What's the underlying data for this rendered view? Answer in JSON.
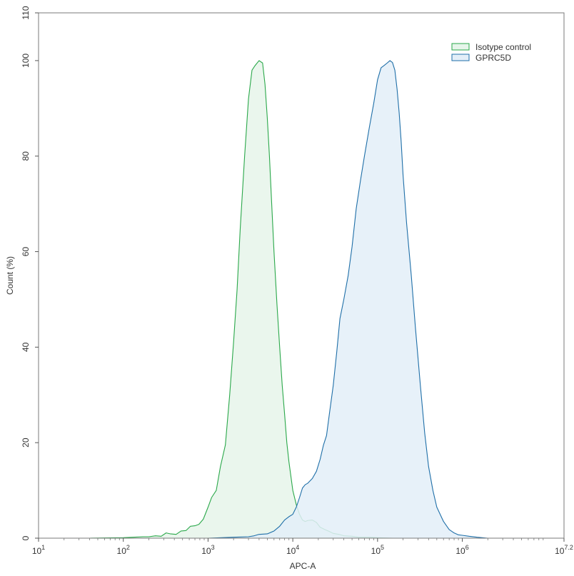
{
  "chart_data": {
    "type": "area",
    "title": "",
    "xlabel": "APC-A",
    "ylabel": "Count (%)",
    "xscale": "log10",
    "xlim_exponent": [
      1,
      7.2
    ],
    "ylim": [
      0,
      110
    ],
    "x_ticks": [
      {
        "base": "10",
        "exp": "1",
        "value": 10
      },
      {
        "base": "10",
        "exp": "2",
        "value": 100
      },
      {
        "base": "10",
        "exp": "3",
        "value": 1000
      },
      {
        "base": "10",
        "exp": "4",
        "value": 10000
      },
      {
        "base": "10",
        "exp": "5",
        "value": 100000
      },
      {
        "base": "10",
        "exp": "6",
        "value": 1000000
      },
      {
        "base": "10",
        "exp": "7.2",
        "value": 15848932
      }
    ],
    "y_ticks": [
      "0",
      "20",
      "40",
      "60",
      "80",
      "100",
      "110"
    ],
    "y_tick_values": [
      0,
      20,
      40,
      60,
      80,
      100,
      110
    ],
    "grid": false,
    "legend_position": "top-right",
    "series": [
      {
        "name": "Isotype control",
        "stroke": "#2aa84a",
        "fill": "#e6f5ea",
        "x": [
          40,
          100,
          130,
          170,
          200,
          240,
          280,
          320,
          360,
          420,
          480,
          550,
          620,
          700,
          780,
          880,
          1000,
          1100,
          1250,
          1400,
          1600,
          1800,
          2000,
          2200,
          2400,
          2700,
          3000,
          3300,
          3600,
          4000,
          4400,
          4700,
          5000,
          5300,
          5600,
          6000,
          6500,
          7000,
          7500,
          8000,
          8500,
          9000,
          10000,
          11000,
          12000,
          13000,
          14000,
          15000,
          17000,
          19000,
          21000,
          24000,
          27000,
          30000,
          35000,
          40000,
          50000,
          60000,
          80000,
          100000,
          150000
        ],
        "values": [
          0,
          0.1,
          0.2,
          0.3,
          0.3,
          0.5,
          0.4,
          1.1,
          0.9,
          0.8,
          1.5,
          1.6,
          2.5,
          2.6,
          2.9,
          4,
          6.5,
          8.5,
          10,
          15,
          19.5,
          30,
          41,
          52,
          65,
          80,
          92,
          98,
          99,
          100,
          99.5,
          95,
          88,
          80,
          71,
          60,
          49,
          40,
          32,
          26,
          20,
          16,
          10,
          7,
          5,
          3.8,
          3.5,
          3.7,
          3.8,
          3.3,
          2.3,
          1.8,
          1.4,
          1,
          0.8,
          0.5,
          0.4,
          0.2,
          0.2,
          0.1,
          0
        ]
      },
      {
        "name": "GPRC5D",
        "stroke": "#1f6fa8",
        "fill": "#e3eef8",
        "x": [
          1000,
          2000,
          3000,
          3500,
          4000,
          5000,
          6000,
          7000,
          8000,
          9000,
          10000,
          11000,
          12000,
          13000,
          14000,
          15000,
          17000,
          19000,
          21000,
          23000,
          25000,
          27000,
          30000,
          33000,
          36000,
          40000,
          45000,
          50000,
          56000,
          63000,
          70000,
          80000,
          90000,
          100000,
          110000,
          120000,
          130000,
          140000,
          150000,
          160000,
          170000,
          180000,
          190000,
          200000,
          220000,
          250000,
          280000,
          320000,
          360000,
          400000,
          450000,
          500000,
          600000,
          700000,
          800000,
          900000,
          1000000,
          1200000,
          1500000,
          2000000
        ],
        "values": [
          0,
          0.2,
          0.3,
          0.5,
          0.8,
          0.9,
          1.5,
          2.5,
          3.8,
          4.5,
          5,
          6.5,
          8.5,
          10.5,
          11.2,
          11.5,
          12.5,
          14,
          16.5,
          19.5,
          21.5,
          26,
          32,
          39,
          46,
          50,
          55,
          61,
          69,
          75,
          80,
          86,
          91,
          96,
          98.5,
          99,
          99.5,
          100,
          99.6,
          98,
          94,
          89,
          83,
          76,
          66,
          55,
          44,
          32,
          22,
          15,
          10,
          6.5,
          3.5,
          1.8,
          1.1,
          0.7,
          0.6,
          0.4,
          0.2,
          0
        ]
      }
    ]
  }
}
